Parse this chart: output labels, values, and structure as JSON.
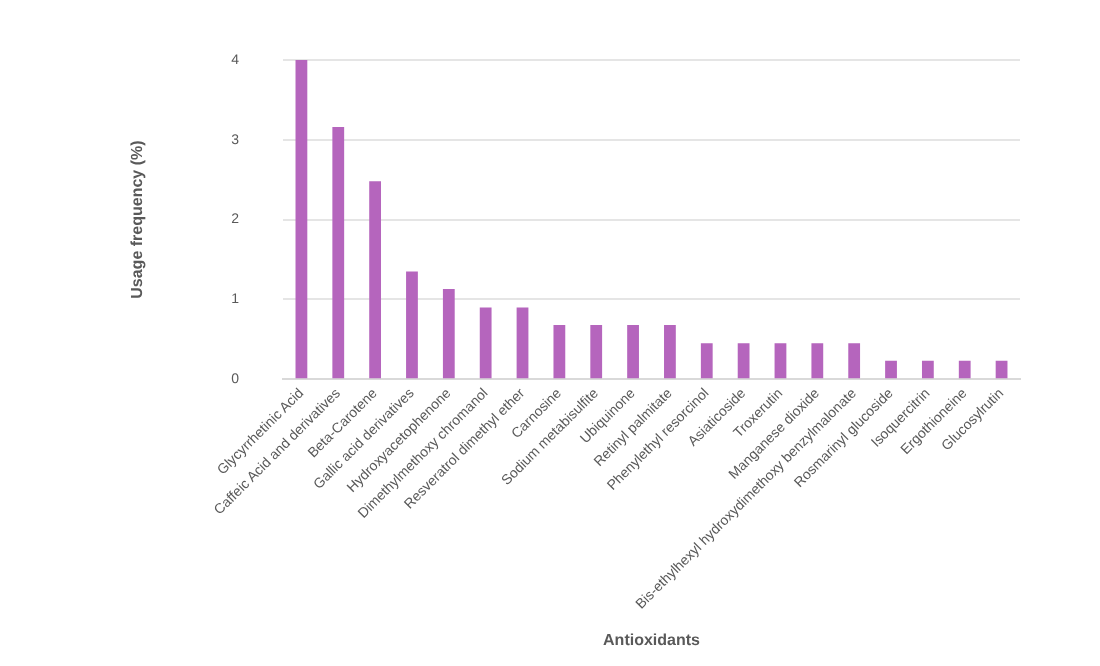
{
  "chart_data": {
    "type": "bar",
    "xlabel": "Antioxidants",
    "ylabel": "Usage frequency (%)",
    "categories": [
      "Glycyrrhetinic Acid",
      "Caffeic Acid and derivatives",
      "Beta-Carotene",
      "Gallic acid derivatives",
      "Hydroxyacetophenone",
      "Dimethylmethoxy chromanol",
      "Resveratrol dimethyl ether",
      "Carnosine",
      "Sodium metabisulfite",
      "Ubiquinone",
      "Retinyl palmitate",
      "Phenylethyl resorcinol",
      "Asiaticoside",
      "Troxerutin",
      "Manganese dioxide",
      "Bis-ethylhexyl hydroxydimethoxy benzylmalonate",
      "Rosmarinyl glucoside",
      "Isoquercitrin",
      "Ergothioneine",
      "Glucosylrutin"
    ],
    "values": [
      4,
      3.16,
      2.48,
      1.35,
      1.13,
      0.9,
      0.9,
      0.68,
      0.68,
      0.68,
      0.68,
      0.45,
      0.45,
      0.45,
      0.45,
      0.45,
      0.23,
      0.23,
      0.23,
      0.23
    ],
    "color": "#b565bd",
    "ylim": [
      0,
      4
    ],
    "yticks": [
      0,
      1,
      2,
      3,
      4
    ],
    "grid": "y",
    "legend": false
  }
}
